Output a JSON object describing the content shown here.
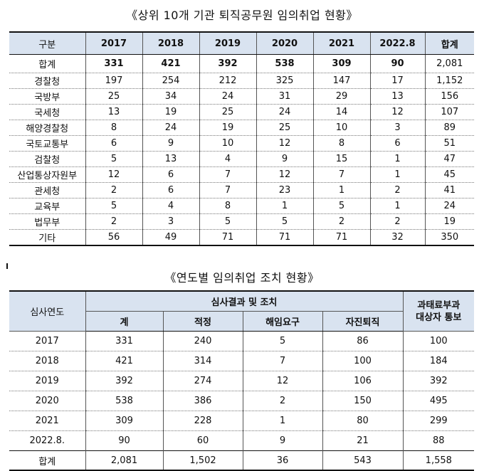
{
  "table1": {
    "title": "《상위 10개 기관 퇴직공무원 임의취업 현황》",
    "headers": [
      "구분",
      "2017",
      "2018",
      "2019",
      "2020",
      "2021",
      "2022.8",
      "합계"
    ],
    "rows": [
      [
        "합계",
        "331",
        "421",
        "392",
        "538",
        "309",
        "90",
        "2,081"
      ],
      [
        "경찰청",
        "197",
        "254",
        "212",
        "325",
        "147",
        "17",
        "1,152"
      ],
      [
        "국방부",
        "25",
        "34",
        "24",
        "31",
        "29",
        "13",
        "156"
      ],
      [
        "국세청",
        "13",
        "19",
        "25",
        "24",
        "14",
        "12",
        "107"
      ],
      [
        "해양경찰청",
        "8",
        "24",
        "19",
        "25",
        "10",
        "3",
        "89"
      ],
      [
        "국토교통부",
        "6",
        "9",
        "10",
        "12",
        "8",
        "6",
        "51"
      ],
      [
        "검찰청",
        "5",
        "13",
        "4",
        "9",
        "15",
        "1",
        "47"
      ],
      [
        "산업통상자원부",
        "12",
        "6",
        "7",
        "12",
        "7",
        "1",
        "45"
      ],
      [
        "관세청",
        "2",
        "6",
        "7",
        "23",
        "1",
        "2",
        "41"
      ],
      [
        "교육부",
        "5",
        "4",
        "8",
        "1",
        "5",
        "1",
        "24"
      ],
      [
        "법무부",
        "2",
        "3",
        "5",
        "5",
        "2",
        "2",
        "19"
      ],
      [
        "기타",
        "56",
        "49",
        "71",
        "71",
        "71",
        "32",
        "350"
      ]
    ]
  },
  "table2": {
    "title": "《연도별 임의취업 조치 현황》",
    "header_year": "심사연도",
    "header_group": "심사결과 및 조치",
    "sub_headers": [
      "계",
      "적정",
      "해임요구",
      "자진퇴직"
    ],
    "header_last": [
      "과태료부과",
      "대상자 통보"
    ],
    "rows": [
      [
        "2017",
        "331",
        "240",
        "5",
        "86",
        "100"
      ],
      [
        "2018",
        "421",
        "314",
        "7",
        "100",
        "184"
      ],
      [
        "2019",
        "392",
        "274",
        "12",
        "106",
        "392"
      ],
      [
        "2020",
        "538",
        "386",
        "2",
        "150",
        "495"
      ],
      [
        "2021",
        "309",
        "228",
        "1",
        "80",
        "299"
      ],
      [
        "2022.8.",
        "90",
        "60",
        "9",
        "21",
        "88"
      ],
      [
        "합계",
        "2,081",
        "1,502",
        "36",
        "543",
        "1,558"
      ]
    ]
  }
}
